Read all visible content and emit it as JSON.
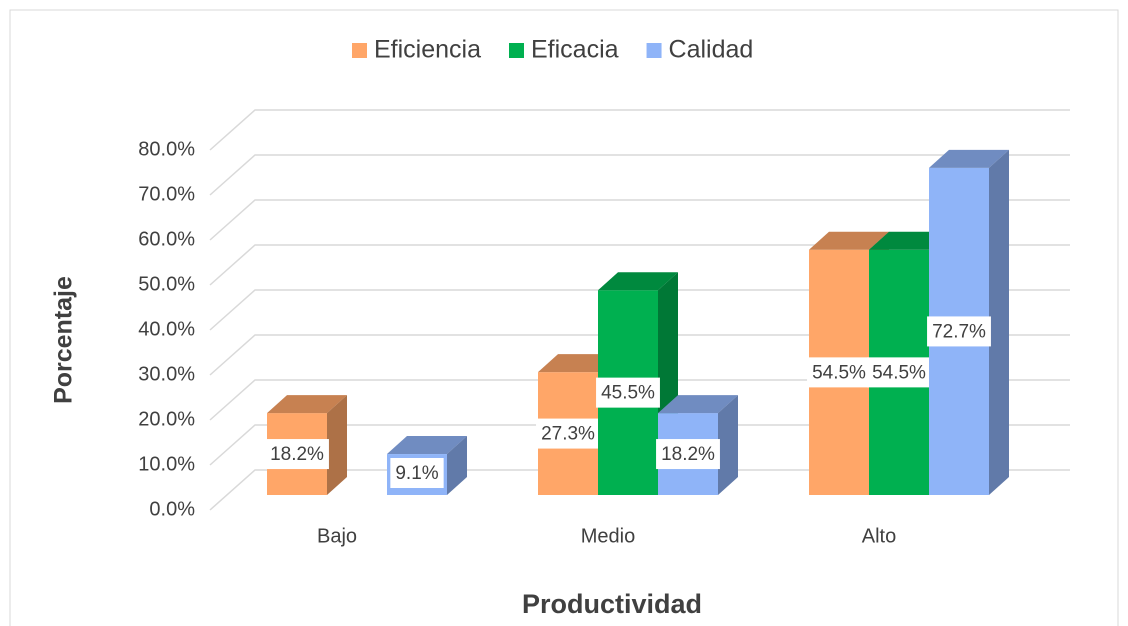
{
  "chart_data": {
    "type": "bar3d",
    "x_label": "Productividad",
    "y_label": "Porcentaje",
    "categories": [
      "Bajo",
      "Medio",
      "Alto"
    ],
    "series": [
      {
        "name": "Eficiencia",
        "color": "#ffa668",
        "values": [
          18.2,
          27.3,
          54.5
        ],
        "value_labels": [
          "18.2%",
          "27.3%",
          "54.5%"
        ]
      },
      {
        "name": "Eficacia",
        "color": "#00b050",
        "values": [
          null,
          45.5,
          54.5
        ],
        "value_labels": [
          null,
          "45.5%",
          "54.5%"
        ]
      },
      {
        "name": "Calidad",
        "color": "#8fb4f8",
        "values": [
          9.1,
          18.2,
          72.7
        ],
        "value_labels": [
          "9.1%",
          "18.2%",
          "72.7%"
        ]
      }
    ],
    "ylim": [
      0,
      80
    ],
    "yticks": [
      {
        "value": 0,
        "label": "0.0%"
      },
      {
        "value": 10,
        "label": "10.0%"
      },
      {
        "value": 20,
        "label": "20.0%"
      },
      {
        "value": 30,
        "label": "30.0%"
      },
      {
        "value": 40,
        "label": "40.0%"
      },
      {
        "value": 50,
        "label": "50.0%"
      },
      {
        "value": 60,
        "label": "60.0%"
      },
      {
        "value": 70,
        "label": "70.0%"
      },
      {
        "value": 80,
        "label": "80.0%"
      }
    ],
    "grid": true,
    "legend": "top"
  }
}
